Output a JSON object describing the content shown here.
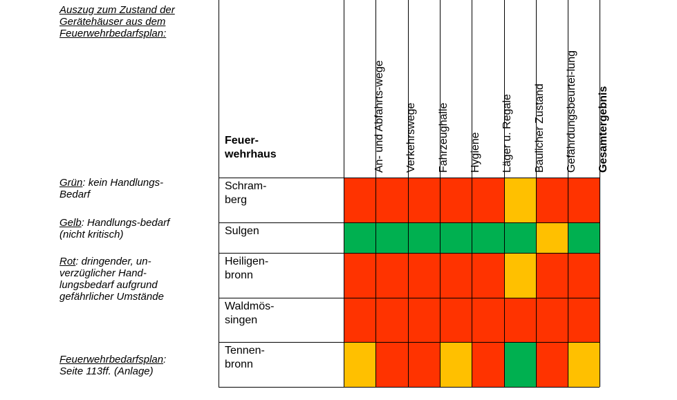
{
  "legend": {
    "intro": "Auszug zum Zustand der Gerätehäuser aus dem Feuerwehrbedarfsplan:",
    "green_key": "Grün",
    "green_text": ": kein Handlungs-Bedarf",
    "yellow_key": "Gelb",
    "yellow_text": ": Handlungs-bedarf (nicht kritisch)",
    "red_key": "Rot",
    "red_text": ": dringender, un-verzüglicher Hand-lungsbedarf aufgrund gefährlicher Umstände",
    "source_key": "Feuerwehrbedarfsplan",
    "source_text": ": Seite 113ff. (Anlage)"
  },
  "table": {
    "row_header": "Feuer-wehrhaus",
    "columns": [
      "An- und Abfahrts-wege",
      "Verkehrswege",
      "Fahrzeughalle",
      "Hygiene",
      "Läger u. Regale",
      "Baulicher Zustand",
      "Gefährdungsbeurtei-lung",
      "Gesamtergebnis"
    ],
    "rows": [
      {
        "name": "Schram-berg",
        "ratings": [
          "red",
          "red",
          "red",
          "red",
          "red",
          "yellow",
          "red",
          "red"
        ]
      },
      {
        "name": "Sulgen",
        "ratings": [
          "green",
          "green",
          "green",
          "green",
          "green",
          "green",
          "yellow",
          "green"
        ]
      },
      {
        "name": "Heiligen-bronn",
        "ratings": [
          "red",
          "red",
          "red",
          "red",
          "red",
          "yellow",
          "red",
          "red"
        ]
      },
      {
        "name": "Waldmös-singen",
        "ratings": [
          "red",
          "red",
          "red",
          "red",
          "red",
          "red",
          "red",
          "red"
        ]
      },
      {
        "name": "Tennen-bronn",
        "ratings": [
          "yellow",
          "red",
          "red",
          "yellow",
          "red",
          "green",
          "red",
          "yellow"
        ]
      }
    ]
  },
  "colors": {
    "red": "#ff3300",
    "yellow": "#ffc000",
    "green": "#00b050"
  }
}
